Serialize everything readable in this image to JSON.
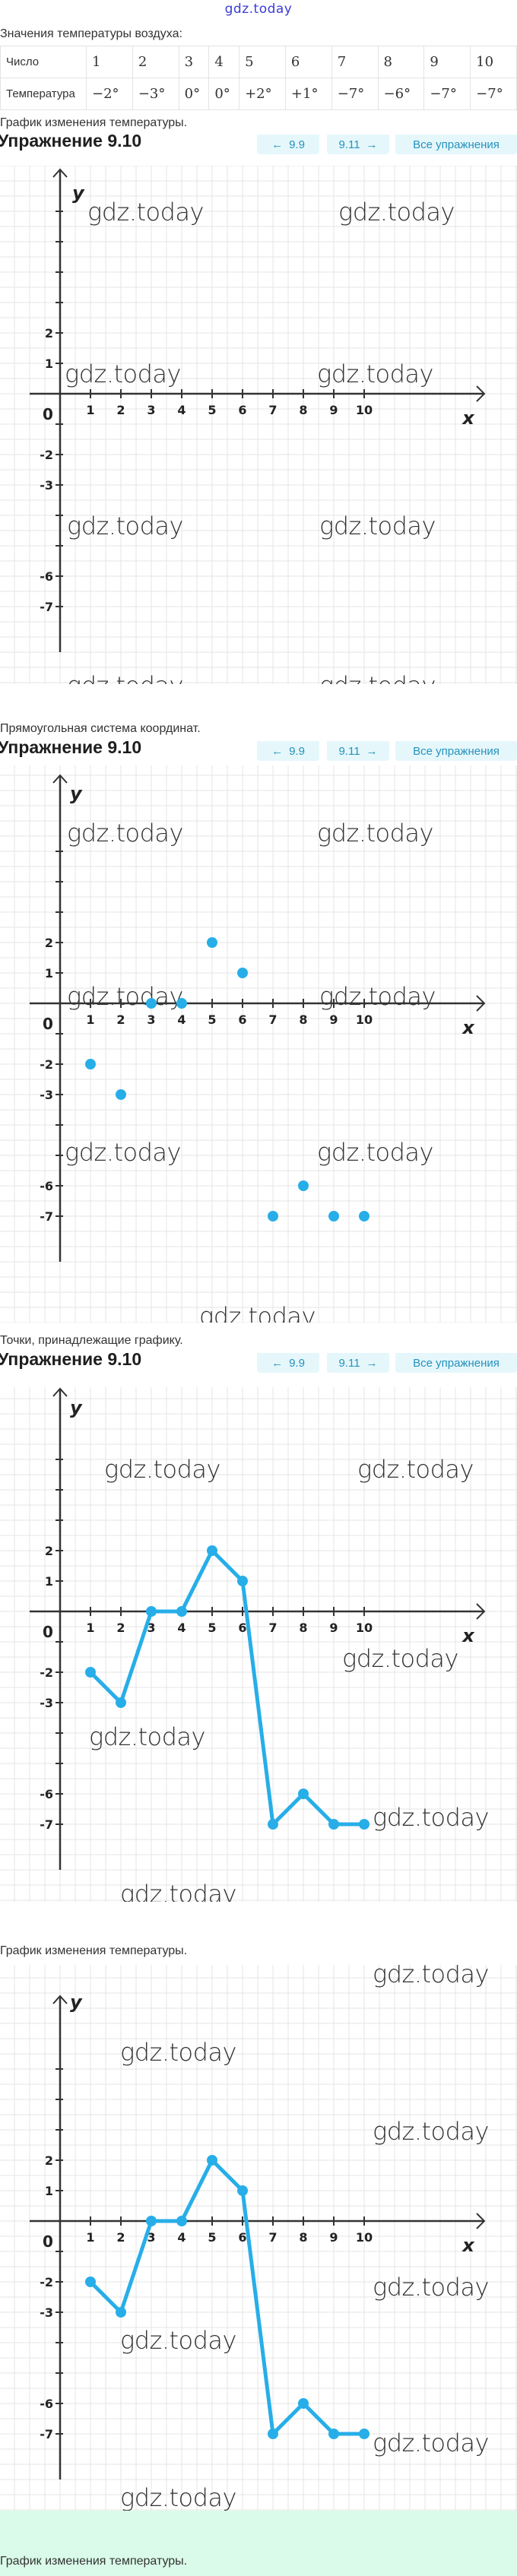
{
  "logo": "gdz.today",
  "table": {
    "intro": "Значения температуры воздуха:",
    "row_labels": [
      "Число",
      "Температура"
    ],
    "numbers": [
      "1",
      "2",
      "3",
      "4",
      "5",
      "6",
      "7",
      "8",
      "9",
      "10"
    ],
    "temperatures": [
      "−2°",
      "−3°",
      "0°",
      "0°",
      "+2°",
      "+1°",
      "−7°",
      "−6°",
      "−7°",
      "−7°"
    ]
  },
  "nav": {
    "prev": "9.9",
    "next": "9.11",
    "all": "Все упражнения",
    "prev_icon": "arrow-left-icon",
    "next_icon": "arrow-right-icon"
  },
  "exercise_title": "Упражнение 9.10",
  "sections": [
    {
      "caption": "График изменения температуры."
    },
    {
      "caption": "Прямоугольная система координат."
    },
    {
      "caption": "Точки, принадлежащие графику."
    },
    {
      "caption": "График изменения температуры."
    }
  ],
  "footer_caption": "График изменения температуры.",
  "watermark": "gdz.today",
  "colors": {
    "series": "#27aee8",
    "axis": "#333333",
    "grid": "#e4e4e4",
    "nav_bg": "#e5f7fb",
    "nav_text": "#2592bd",
    "footer_bg": "#dafbea"
  },
  "chart_data": [
    {
      "type": "line",
      "title": "",
      "xlabel": "x",
      "ylabel": "y",
      "origin_label": "0",
      "x_ticks": [
        "1",
        "2",
        "3",
        "4",
        "5",
        "6",
        "7",
        "8",
        "9",
        "10"
      ],
      "y_ticks": [
        "2",
        "1",
        "-2",
        "-3",
        "-6",
        "-7"
      ],
      "grid": true,
      "x": [],
      "y": [],
      "show_points": false,
      "show_line": false
    },
    {
      "type": "scatter",
      "title": "",
      "xlabel": "x",
      "ylabel": "y",
      "origin_label": "0",
      "x_ticks": [
        "1",
        "2",
        "3",
        "4",
        "5",
        "6",
        "7",
        "8",
        "9",
        "10"
      ],
      "y_ticks": [
        "2",
        "1",
        "-2",
        "-3",
        "-6",
        "-7"
      ],
      "grid": true,
      "x": [
        1,
        2,
        3,
        4,
        5,
        6,
        7,
        8,
        9,
        10
      ],
      "y": [
        -2,
        -3,
        0,
        0,
        2,
        1,
        -7,
        -6,
        -7,
        -7
      ],
      "show_points": true,
      "show_line": false
    },
    {
      "type": "line",
      "title": "",
      "xlabel": "x",
      "ylabel": "y",
      "origin_label": "0",
      "x_ticks": [
        "1",
        "2",
        "3",
        "4",
        "5",
        "6",
        "7",
        "8",
        "9",
        "10"
      ],
      "y_ticks": [
        "2",
        "1",
        "-2",
        "-3",
        "-6",
        "-7"
      ],
      "grid": true,
      "x": [
        1,
        2,
        3,
        4,
        5,
        6,
        7,
        8,
        9,
        10
      ],
      "y": [
        -2,
        -3,
        0,
        0,
        2,
        1,
        -7,
        -6,
        -7,
        -7
      ],
      "show_points": true,
      "show_line": true
    },
    {
      "type": "line",
      "title": "",
      "xlabel": "x",
      "ylabel": "y",
      "origin_label": "0",
      "x_ticks": [
        "1",
        "2",
        "3",
        "4",
        "5",
        "6",
        "7",
        "8",
        "9",
        "10"
      ],
      "y_ticks": [
        "2",
        "1",
        "-2",
        "-3",
        "-6",
        "-7"
      ],
      "grid": true,
      "x": [
        1,
        2,
        3,
        4,
        5,
        6,
        7,
        8,
        9,
        10
      ],
      "y": [
        -2,
        -3,
        0,
        0,
        2,
        1,
        -7,
        -6,
        -7,
        -7
      ],
      "show_points": true,
      "show_line": true
    }
  ]
}
